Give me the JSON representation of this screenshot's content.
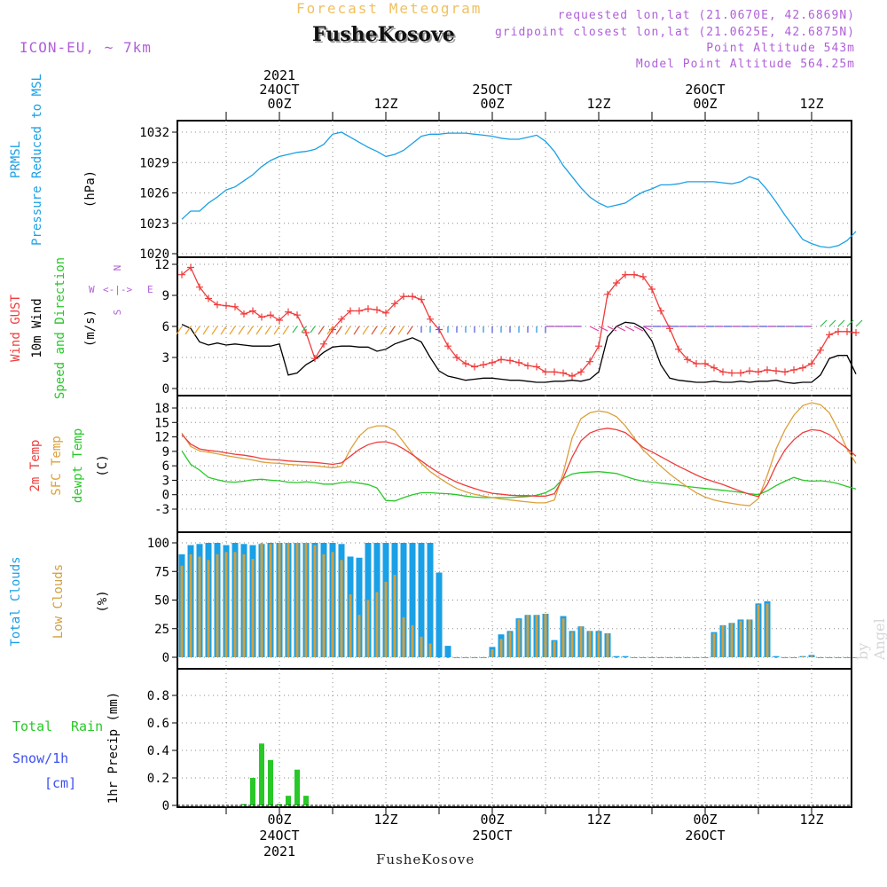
{
  "header": {
    "title": "Forecast Meteogram",
    "model": "ICON-EU, ~ 7km",
    "station": "FusheKosove",
    "requested": "requested lon,lat (21.0670E, 42.6869N)",
    "gridpoint": "gridpoint closest lon,lat (21.0625E, 42.6875N)",
    "altitude": "Point Altitude 543m",
    "model_altitude": "Model Point Altitude 564.25m"
  },
  "footer": {
    "station": "FusheKosove",
    "credit": "by Angel"
  },
  "time_axis": {
    "top": [
      {
        "t": 0,
        "lines": [
          "2021",
          "24OCT",
          "00Z"
        ]
      },
      {
        "t": 12,
        "lines": [
          "12Z"
        ]
      },
      {
        "t": 24,
        "lines": [
          "25OCT",
          "00Z"
        ]
      },
      {
        "t": 36,
        "lines": [
          "12Z"
        ]
      },
      {
        "t": 48,
        "lines": [
          "26OCT",
          "00Z"
        ]
      },
      {
        "t": 60,
        "lines": [
          "12Z"
        ]
      }
    ],
    "bottom": [
      {
        "t": 0,
        "lines": [
          "00Z",
          "24OCT",
          "2021"
        ]
      },
      {
        "t": 12,
        "lines": [
          "12Z"
        ]
      },
      {
        "t": 24,
        "lines": [
          "00Z",
          "25OCT"
        ]
      },
      {
        "t": 36,
        "lines": [
          "12Z"
        ]
      },
      {
        "t": 48,
        "lines": [
          "00Z",
          "26OCT"
        ]
      },
      {
        "t": 60,
        "lines": [
          "12Z"
        ]
      }
    ]
  },
  "colors": {
    "pressure": "#1aa0e6",
    "gust": "#f03c3c",
    "wind": "#000000",
    "t2m": "#f03c3c",
    "tsfc": "#dca03c",
    "dewpt": "#28c828",
    "total_clouds": "#1aa0e6",
    "low_clouds": "#d0a040",
    "rain": "#28c828",
    "snow": "#3c50f0",
    "purple": "#b060d8"
  },
  "chart_data": [
    {
      "type": "line",
      "panel": "pressure",
      "ylabel_lines": [
        "PRMSL",
        "Pressure Reduced to MSL"
      ],
      "unit": "(hPa)",
      "yticks": [
        "1020",
        "1023",
        "1026",
        "1029",
        "1032"
      ],
      "ylim": [
        1020,
        1033
      ],
      "x_hours": [
        -11,
        -10,
        -9,
        -8,
        -7,
        -6,
        -5,
        -4,
        -3,
        -2,
        -1,
        0,
        1,
        2,
        3,
        4,
        5,
        6,
        7,
        8,
        9,
        10,
        11,
        12,
        13,
        14,
        15,
        16,
        17,
        18,
        19,
        20,
        21,
        22,
        23,
        24,
        25,
        26,
        27,
        28,
        29,
        30,
        31,
        32,
        33,
        34,
        35,
        36,
        37,
        38,
        39,
        40,
        41,
        42,
        43,
        44,
        45,
        46,
        47,
        48,
        49,
        50,
        51,
        52,
        53,
        54,
        55,
        56,
        57,
        58,
        59,
        60,
        61,
        62,
        63,
        64,
        65
      ],
      "series": [
        {
          "values": [
            1023.4,
            1024.2,
            1024.2,
            1025.0,
            1025.6,
            1026.3,
            1026.6,
            1027.2,
            1027.8,
            1028.6,
            1029.2,
            1029.6,
            1029.8,
            1030.0,
            1030.1,
            1030.3,
            1030.8,
            1031.8,
            1032.0,
            1031.5,
            1031.0,
            1030.5,
            1030.1,
            1029.6,
            1029.8,
            1030.2,
            1030.9,
            1031.6,
            1031.8,
            1031.8,
            1031.9,
            1031.9,
            1031.9,
            1031.8,
            1031.7,
            1031.6,
            1031.4,
            1031.3,
            1031.3,
            1031.5,
            1031.7,
            1031.1,
            1030.1,
            1028.7,
            1027.6,
            1026.5,
            1025.6,
            1025.0,
            1024.6,
            1024.8,
            1025.0,
            1025.6,
            1026.1,
            1026.4,
            1026.8,
            1026.8,
            1026.9,
            1027.1,
            1027.1,
            1027.1,
            1027.1,
            1027.0,
            1026.9,
            1027.1,
            1027.6,
            1027.3,
            1026.3,
            1025.1,
            1023.8,
            1022.6,
            1021.4,
            1021.0,
            1020.7,
            1020.6,
            1020.8,
            1021.3,
            1022.2
          ]
        }
      ]
    },
    {
      "type": "line",
      "panel": "wind",
      "ylabel_gust": "Wind GUST",
      "ylabel_wind": "10m Wind",
      "ylabel_dir": "Speed and Direction",
      "unit": "(m/s)",
      "compass": {
        "n": "N",
        "w": "W",
        "e": "E",
        "s": "S",
        "mid": "<-|->"
      },
      "yticks": [
        "0",
        "3",
        "6",
        "9",
        "12"
      ],
      "ylim": [
        0,
        12.3
      ],
      "x_hours": [
        -11,
        -10,
        -9,
        -8,
        -7,
        -6,
        -5,
        -4,
        -3,
        -2,
        -1,
        0,
        1,
        2,
        3,
        4,
        5,
        6,
        7,
        8,
        9,
        10,
        11,
        12,
        13,
        14,
        15,
        16,
        17,
        18,
        19,
        20,
        21,
        22,
        23,
        24,
        25,
        26,
        27,
        28,
        29,
        30,
        31,
        32,
        33,
        34,
        35,
        36,
        37,
        38,
        39,
        40,
        41,
        42,
        43,
        44,
        45,
        46,
        47,
        48,
        49,
        50,
        51,
        52,
        53,
        54,
        55,
        56,
        57,
        58,
        59,
        60,
        61,
        62,
        63,
        64,
        65
      ],
      "series": [
        {
          "name": "Wind GUST",
          "values": [
            11.0,
            11.7,
            9.8,
            8.7,
            8.1,
            8.0,
            7.9,
            7.2,
            7.5,
            6.9,
            7.1,
            6.6,
            7.4,
            7.1,
            5.4,
            2.9,
            4.3,
            5.7,
            6.7,
            7.5,
            7.5,
            7.7,
            7.6,
            7.3,
            8.2,
            8.9,
            8.9,
            8.6,
            6.7,
            5.7,
            4.1,
            3.0,
            2.4,
            2.1,
            2.3,
            2.5,
            2.8,
            2.7,
            2.5,
            2.2,
            2.1,
            1.6,
            1.6,
            1.5,
            1.2,
            1.6,
            2.6,
            4.1,
            9.1,
            10.2,
            11.0,
            11.0,
            10.8,
            9.6,
            7.5,
            5.8,
            3.8,
            2.8,
            2.4,
            2.4,
            2.0,
            1.6,
            1.5,
            1.5,
            1.7,
            1.6,
            1.8,
            1.7,
            1.6,
            1.8,
            2.0,
            2.4,
            3.7,
            5.2,
            5.5,
            5.5,
            5.4
          ]
        },
        {
          "name": "10m Wind",
          "values": [
            6.2,
            5.8,
            4.5,
            4.2,
            4.4,
            4.2,
            4.3,
            4.2,
            4.1,
            4.1,
            4.1,
            4.3,
            1.3,
            1.5,
            2.3,
            2.8,
            3.5,
            4.0,
            4.1,
            4.1,
            4.0,
            4.0,
            3.6,
            3.8,
            4.3,
            4.6,
            4.9,
            4.5,
            3.0,
            1.7,
            1.2,
            1.0,
            0.8,
            0.9,
            1.0,
            1.0,
            0.9,
            0.8,
            0.8,
            0.7,
            0.6,
            0.6,
            0.7,
            0.7,
            0.8,
            0.7,
            0.9,
            1.6,
            5.0,
            6.0,
            6.4,
            6.3,
            5.8,
            4.6,
            2.3,
            1.0,
            0.8,
            0.7,
            0.6,
            0.6,
            0.7,
            0.6,
            0.6,
            0.7,
            0.6,
            0.7,
            0.7,
            0.8,
            0.6,
            0.5,
            0.6,
            0.6,
            1.3,
            2.9,
            3.2,
            3.2,
            1.4
          ]
        }
      ],
      "wind_barb_colors": [
        "#f0a020",
        "#c0d030",
        "#30c050",
        "#2090e0",
        "#5050e0",
        "#a040c0",
        "#e040a0",
        "#e05030"
      ]
    },
    {
      "type": "line",
      "panel": "temperature",
      "ylabel_t2m": "2m Temp",
      "ylabel_tsfc": "SFC Temp",
      "ylabel_dew": "dewpt Temp",
      "unit": "(C)",
      "yticks": [
        "-3",
        "0",
        "3",
        "6",
        "9",
        "12",
        "15",
        "18"
      ],
      "ylim": [
        -3.5,
        19.5
      ],
      "x_hours": [
        -11,
        -10,
        -9,
        -8,
        -7,
        -6,
        -5,
        -4,
        -3,
        -2,
        -1,
        0,
        1,
        2,
        3,
        4,
        5,
        6,
        7,
        8,
        9,
        10,
        11,
        12,
        13,
        14,
        15,
        16,
        17,
        18,
        19,
        20,
        21,
        22,
        23,
        24,
        25,
        26,
        27,
        28,
        29,
        30,
        31,
        32,
        33,
        34,
        35,
        36,
        37,
        38,
        39,
        40,
        41,
        42,
        43,
        44,
        45,
        46,
        47,
        48,
        49,
        50,
        51,
        52,
        53,
        54,
        55,
        56,
        57,
        58,
        59,
        60,
        61,
        62,
        63,
        64,
        65
      ],
      "series": [
        {
          "name": "2m Temp",
          "values": [
            12.5,
            10.5,
            9.5,
            9.2,
            9.0,
            8.7,
            8.4,
            8.2,
            7.9,
            7.5,
            7.3,
            7.2,
            7.0,
            6.9,
            6.8,
            6.7,
            6.5,
            6.3,
            6.6,
            8.0,
            9.4,
            10.4,
            10.9,
            11.0,
            10.5,
            9.5,
            8.3,
            7.0,
            5.7,
            4.5,
            3.5,
            2.6,
            1.9,
            1.3,
            0.7,
            0.3,
            0.1,
            -0.1,
            -0.2,
            -0.2,
            -0.3,
            -0.3,
            0.2,
            3.5,
            7.8,
            11.2,
            12.8,
            13.5,
            13.8,
            13.5,
            12.9,
            11.4,
            9.8,
            8.9,
            7.9,
            6.9,
            5.9,
            5.0,
            4.1,
            3.3,
            2.7,
            2.1,
            1.4,
            0.7,
            0.1,
            -0.4,
            2.1,
            6.1,
            9.3,
            11.4,
            12.9,
            13.5,
            13.3,
            12.5,
            11.0,
            9.6,
            8.0
          ]
        },
        {
          "name": "SFC Temp",
          "values": [
            12.8,
            10.0,
            9.1,
            8.8,
            8.5,
            8.1,
            7.8,
            7.5,
            7.2,
            6.8,
            6.6,
            6.5,
            6.3,
            6.2,
            6.1,
            6.0,
            5.8,
            5.6,
            5.9,
            9.4,
            12.2,
            13.8,
            14.3,
            14.3,
            13.3,
            10.9,
            8.5,
            6.5,
            4.8,
            3.5,
            2.3,
            1.3,
            0.6,
            0.1,
            -0.3,
            -0.6,
            -0.9,
            -1.1,
            -1.3,
            -1.5,
            -1.7,
            -1.7,
            -1.1,
            4.5,
            11.8,
            15.8,
            17.0,
            17.4,
            17.1,
            16.2,
            14.3,
            11.8,
            9.3,
            7.6,
            5.9,
            4.3,
            2.9,
            1.6,
            0.4,
            -0.5,
            -1.1,
            -1.5,
            -1.8,
            -2.1,
            -2.3,
            -0.8,
            4.0,
            9.5,
            13.5,
            16.5,
            18.5,
            19.1,
            18.7,
            17.0,
            13.5,
            9.5,
            6.5
          ]
        },
        {
          "name": "dewpt Temp",
          "values": [
            9.1,
            6.3,
            5.1,
            3.6,
            3.1,
            2.7,
            2.6,
            2.8,
            3.1,
            3.2,
            3.0,
            2.9,
            2.6,
            2.5,
            2.7,
            2.5,
            2.2,
            2.2,
            2.5,
            2.7,
            2.4,
            2.1,
            1.4,
            -1.2,
            -1.3,
            -0.6,
            0.0,
            0.4,
            0.4,
            0.3,
            0.2,
            0.0,
            -0.3,
            -0.5,
            -0.6,
            -0.6,
            -0.6,
            -0.6,
            -0.5,
            -0.4,
            -0.1,
            0.4,
            1.4,
            3.4,
            4.3,
            4.6,
            4.7,
            4.8,
            4.6,
            4.4,
            3.8,
            3.2,
            2.8,
            2.6,
            2.4,
            2.2,
            2.0,
            1.7,
            1.5,
            1.3,
            1.1,
            0.9,
            0.7,
            0.5,
            0.2,
            0.0,
            0.8,
            1.9,
            2.8,
            3.6,
            3.0,
            2.8,
            2.9,
            2.7,
            2.3,
            1.7,
            1.2
          ]
        }
      ]
    },
    {
      "type": "bar",
      "panel": "clouds",
      "ylabel_total": "Total Clouds",
      "ylabel_low": "Low Clouds",
      "unit": "(%)",
      "yticks": [
        "0",
        "25",
        "50",
        "75",
        "100"
      ],
      "ylim": [
        -5,
        105
      ],
      "x_hours": [
        -11,
        -10,
        -9,
        -8,
        -7,
        -6,
        -5,
        -4,
        -3,
        -2,
        -1,
        0,
        1,
        2,
        3,
        4,
        5,
        6,
        7,
        8,
        9,
        10,
        11,
        12,
        13,
        14,
        15,
        16,
        17,
        18,
        19,
        20,
        21,
        22,
        23,
        24,
        25,
        26,
        27,
        28,
        29,
        30,
        31,
        32,
        33,
        34,
        35,
        36,
        37,
        38,
        39,
        40,
        41,
        42,
        43,
        44,
        45,
        46,
        47,
        48,
        49,
        50,
        51,
        52,
        53,
        54,
        55,
        56,
        57,
        58,
        59,
        60,
        61,
        62,
        63,
        64,
        65
      ],
      "series": [
        {
          "name": "Total Clouds",
          "values": [
            90,
            98,
            99,
            100,
            100,
            98,
            100,
            99,
            98,
            99,
            100,
            100,
            100,
            100,
            100,
            100,
            100,
            100,
            99,
            88,
            87,
            100,
            100,
            100,
            100,
            100,
            100,
            100,
            100,
            74,
            10,
            0,
            0,
            0,
            0,
            9,
            20,
            23,
            34,
            37,
            37,
            38,
            15,
            36,
            23,
            27,
            23,
            23,
            21,
            1,
            1,
            0,
            0,
            0,
            0,
            0,
            0,
            0,
            0,
            0,
            22,
            28,
            30,
            33,
            33,
            47,
            49,
            1,
            0,
            0,
            1,
            2,
            0,
            0,
            0,
            0,
            0
          ]
        },
        {
          "name": "Low Clouds",
          "values": [
            80,
            90,
            88,
            85,
            90,
            92,
            92,
            90,
            86,
            100,
            99,
            100,
            100,
            100,
            100,
            98,
            90,
            92,
            85,
            55,
            37,
            50,
            57,
            66,
            72,
            35,
            28,
            18,
            12,
            0,
            0,
            0,
            0,
            0,
            0,
            7,
            16,
            22,
            33,
            37,
            37,
            38,
            14,
            34,
            22,
            27,
            23,
            22,
            21,
            0,
            0,
            0,
            0,
            0,
            0,
            0,
            0,
            0,
            0,
            0,
            21,
            28,
            30,
            32,
            33,
            46,
            47,
            0,
            0,
            0,
            1,
            1,
            0,
            0,
            0,
            0,
            0
          ]
        }
      ]
    },
    {
      "type": "bar",
      "panel": "precip",
      "label_total": "Total",
      "label_rain": "Rain",
      "label_snow": "Snow/1h",
      "label_cm": "[cm]",
      "ylabel": "1hr Precip (mm)",
      "yticks": [
        "0",
        "0.2",
        "0.4",
        "0.6",
        "0.8"
      ],
      "ylim": [
        0,
        0.98
      ],
      "x_hours": [
        -4,
        -3,
        -2,
        -1,
        0,
        1,
        2,
        3
      ],
      "series": [
        {
          "name": "Rain",
          "values": [
            0.01,
            0.2,
            0.45,
            0.33,
            0.01,
            0.07,
            0.26,
            0.07
          ]
        }
      ]
    }
  ]
}
